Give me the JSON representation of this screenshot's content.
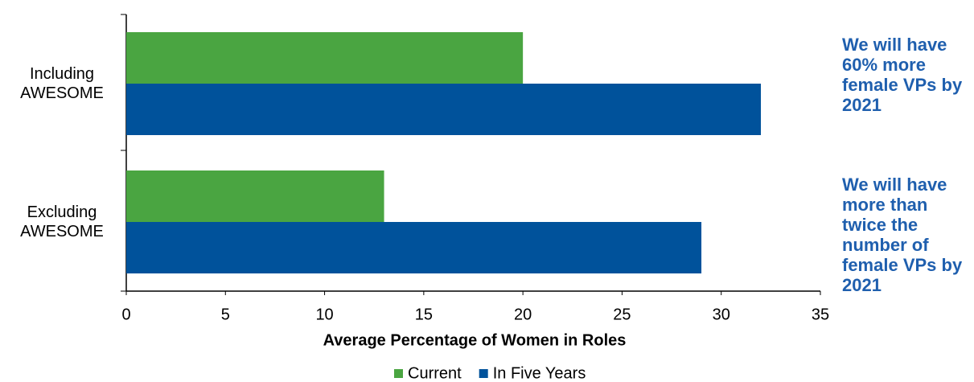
{
  "chart_data": {
    "type": "barh",
    "xlabel": "Average Percentage of Women in Roles",
    "categories": [
      "Including AWESOME",
      "Excluding AWESOME"
    ],
    "series": [
      {
        "name": "Current",
        "color": "#4aa541",
        "values": [
          20,
          13
        ]
      },
      {
        "name": "In Five Years",
        "color": "#00529b",
        "values": [
          32,
          29
        ]
      }
    ],
    "xlim": [
      0,
      35
    ],
    "xticks": [
      0,
      5,
      10,
      15,
      20,
      25,
      30,
      35
    ],
    "legend": "bottom",
    "annotations": [
      "We will have 60% more female VPs by 2021",
      "We will have more than twice the number of female VPs by 2021"
    ],
    "annotation_color": "#1f5fae"
  }
}
